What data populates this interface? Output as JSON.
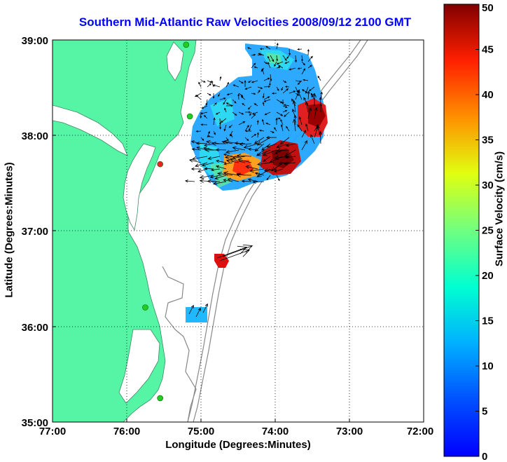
{
  "chart_data": {
    "type": "heatmap",
    "title": "Southern Mid-Atlantic Raw Velocities 2008/09/12 2100 GMT",
    "xlabel": "Longitude (Degrees:Minutes)",
    "ylabel": "Latitude (Degrees:Minutes)",
    "colorbar_label": "Surface Velocity (cm/s)",
    "x_ticks": [
      "77:00",
      "76:00",
      "75:00",
      "74:00",
      "73:00",
      "72:00"
    ],
    "y_ticks": [
      "39:00",
      "38:00",
      "37:00",
      "36:00",
      "35:00"
    ],
    "xlim": [
      -77,
      -72
    ],
    "ylim": [
      35,
      39
    ],
    "colorbar_ticks": [
      0,
      5,
      10,
      15,
      20,
      25,
      30,
      35,
      40,
      45,
      50
    ],
    "colorbar_range": [
      0,
      50
    ],
    "colormap": "jet",
    "grid": true,
    "land_color": "#55f5a5",
    "bathymetry_color": "#888888",
    "velocity_regions": [
      {
        "region": "northern coverage field",
        "lon_range": [
          -75.2,
          -73.6
        ],
        "lat_range": [
          37.5,
          38.95
        ],
        "typical_velocity": 8
      },
      {
        "region": "eastern high-speed core",
        "lon": -73.5,
        "lat": 38.25,
        "velocity": 48
      },
      {
        "region": "southern high-speed core",
        "lon": -73.85,
        "lat": 37.75,
        "velocity": 47
      },
      {
        "region": "southwestern jet",
        "lon": -74.55,
        "lat": 37.65,
        "velocity": 35
      },
      {
        "region": "isolated cell near shelf break",
        "lon": -74.75,
        "lat": 36.7,
        "velocity": 48
      },
      {
        "region": "southern small patch",
        "lon": -75.0,
        "lat": 36.1,
        "velocity": 10
      }
    ],
    "station_markers": [
      {
        "lat": 38.95,
        "lon": -75.2,
        "color": "#22cc22"
      },
      {
        "lat": 38.2,
        "lon": -75.15,
        "color": "#22cc22"
      },
      {
        "lat": 37.7,
        "lon": -75.55,
        "color": "#ee2222"
      },
      {
        "lat": 36.2,
        "lon": -75.75,
        "color": "#22cc22"
      },
      {
        "lat": 35.25,
        "lon": -75.55,
        "color": "#22cc22"
      }
    ]
  }
}
